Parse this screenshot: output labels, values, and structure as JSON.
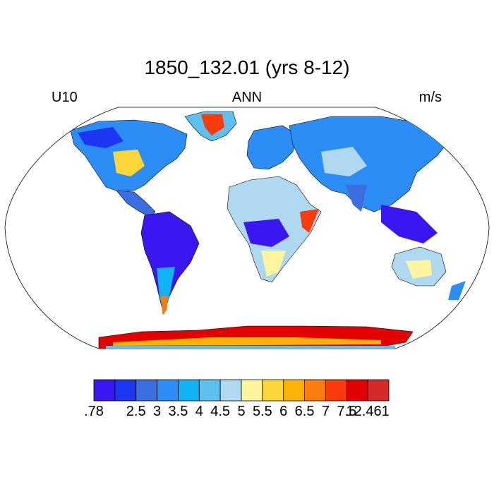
{
  "title": "1850_132.01 (yrs 8-12)",
  "left_label": "U10",
  "center_label": "ANN",
  "right_label": "m/s",
  "colorbar": {
    "colors": [
      "#3a16f0",
      "#1d36f2",
      "#3b6ee0",
      "#2c8df7",
      "#10b3f4",
      "#5cc0f0",
      "#aed9f0",
      "#fff59f",
      "#fdd73a",
      "#fdb20a",
      "#fc7d0e",
      "#fa3b0c",
      "#e20000",
      "#d42a2a"
    ],
    "tick_labels": [
      ".78",
      "2.5",
      "3",
      "3.5",
      "4",
      "4.5",
      "5",
      "5.5",
      "6",
      "6.5",
      "7",
      "7.5",
      "12.461"
    ]
  }
}
